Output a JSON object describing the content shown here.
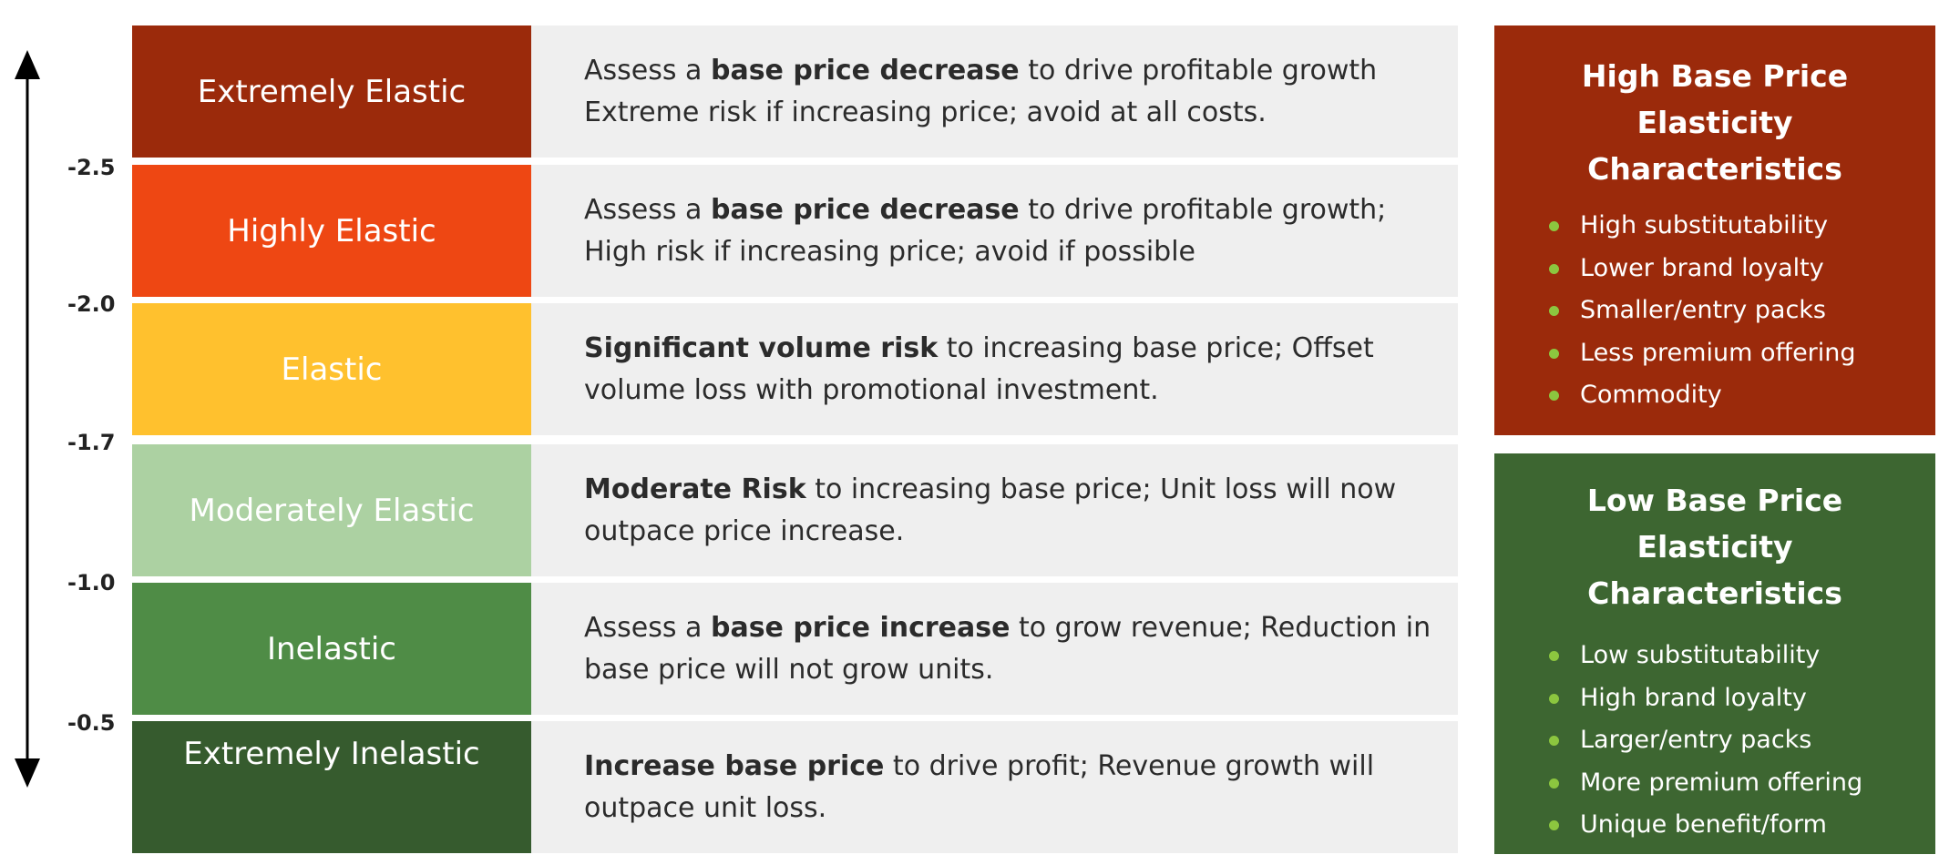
{
  "colors": {
    "extremely_elastic": "#9b2a0b",
    "highly_elastic": "#ee4713",
    "elastic": "#ffc12e",
    "moderately_elastic": "#acd1a2",
    "inelastic": "#4f8c46",
    "extremely_inelastic": "#365b2e",
    "description_bg": "#efefef",
    "high_panel": "#9b2a0b",
    "low_panel": "#3d6631",
    "bullet": "#8cc63f"
  },
  "axis": {
    "ticks": [
      "-2.5",
      "-2.0",
      "-1.7",
      "-1.0",
      "-0.5"
    ]
  },
  "rows": [
    {
      "label": "Extremely Elastic",
      "line1": {
        "pre": "Assess a ",
        "bold": "base price decrease",
        "post": " to drive profitable growth"
      },
      "line2": "Extreme risk if increasing price; avoid at all costs."
    },
    {
      "label": "Highly Elastic",
      "line1": {
        "pre": "Assess a ",
        "bold": "base price decrease",
        "post": " to drive profitable growth;"
      },
      "line2": "High risk if increasing price; avoid if possible"
    },
    {
      "label": "Elastic",
      "line1": {
        "pre": "",
        "bold": "Significant volume risk",
        "post": " to increasing base price; Offset"
      },
      "line2": "volume loss with promotional investment."
    },
    {
      "label": "Moderately Elastic",
      "line1": {
        "pre": "",
        "bold": "Moderate Risk",
        "post": " to increasing base price; Unit loss will now"
      },
      "line2": "outpace price increase."
    },
    {
      "label": "Inelastic",
      "line1": {
        "pre": "Assess a ",
        "bold": "base price increase",
        "post": " to grow revenue; Reduction in"
      },
      "line2": "base price will not grow units."
    },
    {
      "label": "Extremely Inelastic",
      "line1": {
        "pre": "",
        "bold": "Increase base price",
        "post": " to drive profit; Revenue growth will"
      },
      "line2": "outpace unit loss."
    }
  ],
  "high_panel": {
    "title_line1": "High Base Price",
    "title_line2": "Elasticity Characteristics",
    "items": [
      "High substitutability",
      "Lower brand loyalty",
      "Smaller/entry packs",
      "Less premium offering",
      "Commodity"
    ]
  },
  "low_panel": {
    "title_line1": "Low Base Price Elasticity",
    "title_line2": "Characteristics",
    "items": [
      "Low substitutability",
      "High brand loyalty",
      "Larger/entry packs",
      "More premium offering",
      "Unique benefit/form"
    ]
  }
}
